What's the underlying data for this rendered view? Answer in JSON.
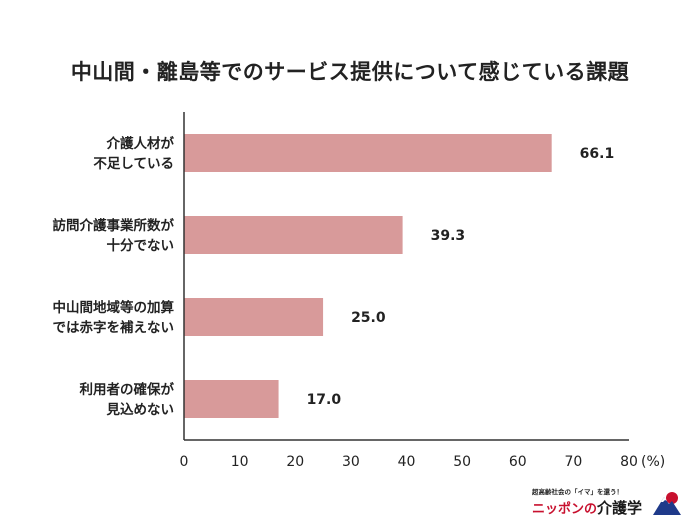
{
  "chart_data": {
    "type": "bar",
    "orientation": "horizontal",
    "title": "中山間・離島等でのサービス提供について感じている課題",
    "categories": [
      [
        "介護人材が",
        "不足している"
      ],
      [
        "訪問介護事業所数が",
        "十分でない"
      ],
      [
        "中山間地域等の加算",
        "では赤字を補えない"
      ],
      [
        "利用者の確保が",
        "見込めない"
      ]
    ],
    "values": [
      66.1,
      39.3,
      25.0,
      17.0
    ],
    "value_labels": [
      "66.1",
      "39.3",
      "25.0",
      "17.0"
    ],
    "xlim": [
      0,
      80
    ],
    "ticks": [
      "0",
      "10",
      "20",
      "30",
      "40",
      "50",
      "60",
      "70",
      "80"
    ],
    "unit": "(%)",
    "bar_color": "#d89a9a",
    "axis_color": "#333333",
    "grid": false,
    "legend": "none"
  },
  "logo": {
    "tagline": "超高齢社会の「イマ」を還う！",
    "name_part1": "ニッポンの",
    "name_part2": "介護学",
    "mark_colors": [
      "#1f3a8a",
      "#c8102e"
    ]
  }
}
